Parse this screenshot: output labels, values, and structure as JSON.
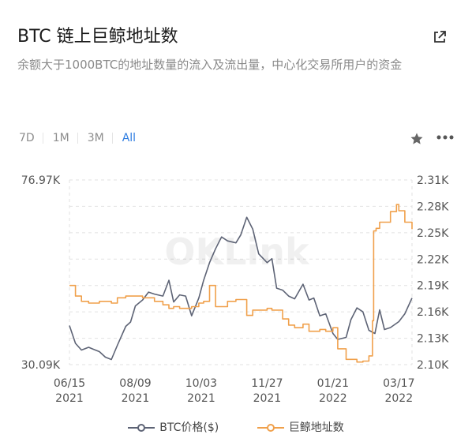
{
  "header": {
    "title": "BTC 链上巨鲸地址数",
    "subtitle": "余额大于1000BTC的地址数量的流入及流出量，中心化交易所用户的资金"
  },
  "tabs": [
    {
      "label": "7D",
      "active": false
    },
    {
      "label": "1M",
      "active": false
    },
    {
      "label": "3M",
      "active": false
    },
    {
      "label": "All",
      "active": true
    }
  ],
  "icons": {
    "external": "external-link-icon",
    "favorite": "star-icon",
    "menu": "more-icon"
  },
  "watermark": "OKLink",
  "colors": {
    "btc": "#5d6375",
    "whale": "#f0a04b",
    "active_tab": "#2e7de1"
  },
  "chart_data": {
    "type": "line",
    "x_ticks": [
      "06/15\n2021",
      "08/09\n2021",
      "10/03\n2021",
      "11/27\n2021",
      "01/21\n2022",
      "03/17\n2022"
    ],
    "y_left": {
      "min_label": "30.09K",
      "max_label": "76.97K",
      "min": 30090,
      "max": 76970
    },
    "y_right": {
      "ticks": [
        "2.31K",
        "2.28K",
        "2.25K",
        "2.22K",
        "2.19K",
        "2.16K",
        "2.13K",
        "2.10K"
      ],
      "min": 2100,
      "max": 2310
    },
    "grid": true,
    "legend_position": "bottom",
    "series": [
      {
        "name": "BTC价格($)",
        "axis": "left",
        "color": "#5d6375",
        "x": [
          "2021-06-15",
          "2021-06-20",
          "2021-06-25",
          "2021-07-01",
          "2021-07-05",
          "2021-07-10",
          "2021-07-15",
          "2021-07-20",
          "2021-07-25",
          "2021-08-01",
          "2021-08-05",
          "2021-08-09",
          "2021-08-15",
          "2021-08-20",
          "2021-08-25",
          "2021-09-01",
          "2021-09-06",
          "2021-09-10",
          "2021-09-15",
          "2021-09-20",
          "2021-09-25",
          "2021-10-01",
          "2021-10-05",
          "2021-10-10",
          "2021-10-15",
          "2021-10-20",
          "2021-10-25",
          "2021-11-01",
          "2021-11-05",
          "2021-11-10",
          "2021-11-15",
          "2021-11-20",
          "2021-11-27",
          "2021-12-01",
          "2021-12-05",
          "2021-12-10",
          "2021-12-15",
          "2021-12-20",
          "2021-12-27",
          "2022-01-01",
          "2022-01-05",
          "2022-01-10",
          "2022-01-15",
          "2022-01-21",
          "2022-01-25",
          "2022-02-01",
          "2022-02-05",
          "2022-02-10",
          "2022-02-15",
          "2022-02-20",
          "2022-02-25",
          "2022-03-01",
          "2022-03-05",
          "2022-03-10",
          "2022-03-17",
          "2022-03-22",
          "2022-03-28"
        ],
        "values": [
          40000,
          35500,
          33800,
          34500,
          34000,
          33400,
          32000,
          31400,
          35000,
          39800,
          40900,
          45000,
          46500,
          48500,
          48000,
          47500,
          51500,
          46000,
          47800,
          47500,
          42500,
          47000,
          51500,
          56000,
          59500,
          62500,
          61500,
          61000,
          63000,
          67500,
          64500,
          58200,
          56000,
          57000,
          49500,
          49000,
          47500,
          46800,
          50500,
          46500,
          47000,
          42500,
          43000,
          38000,
          36500,
          37000,
          41500,
          44500,
          43500,
          38800,
          38000,
          44000,
          39000,
          39500,
          41000,
          43000,
          47000
        ]
      },
      {
        "name": "巨鲸地址数",
        "axis": "right",
        "color": "#f0a04b",
        "x": [
          "2021-06-15",
          "2021-06-20",
          "2021-06-25",
          "2021-07-01",
          "2021-07-10",
          "2021-07-20",
          "2021-07-25",
          "2021-08-01",
          "2021-08-09",
          "2021-08-15",
          "2021-08-25",
          "2021-09-01",
          "2021-09-06",
          "2021-09-10",
          "2021-09-15",
          "2021-09-25",
          "2021-10-01",
          "2021-10-05",
          "2021-10-10",
          "2021-10-15",
          "2021-10-25",
          "2021-11-01",
          "2021-11-10",
          "2021-11-15",
          "2021-11-27",
          "2021-12-01",
          "2021-12-10",
          "2021-12-15",
          "2021-12-20",
          "2021-12-27",
          "2022-01-01",
          "2022-01-10",
          "2022-01-15",
          "2022-01-21",
          "2022-01-25",
          "2022-02-01",
          "2022-02-10",
          "2022-02-15",
          "2022-02-20",
          "2022-02-23",
          "2022-02-24",
          "2022-02-26",
          "2022-03-01",
          "2022-03-10",
          "2022-03-15",
          "2022-03-17",
          "2022-03-22",
          "2022-03-28"
        ],
        "values": [
          2190,
          2178,
          2172,
          2170,
          2172,
          2170,
          2176,
          2178,
          2178,
          2176,
          2172,
          2168,
          2164,
          2166,
          2164,
          2166,
          2170,
          2172,
          2190,
          2166,
          2172,
          2174,
          2156,
          2162,
          2164,
          2162,
          2152,
          2145,
          2142,
          2146,
          2138,
          2140,
          2138,
          2142,
          2118,
          2106,
          2103,
          2104,
          2110,
          2150,
          2252,
          2255,
          2262,
          2274,
          2282,
          2275,
          2262,
          2254
        ]
      }
    ]
  }
}
